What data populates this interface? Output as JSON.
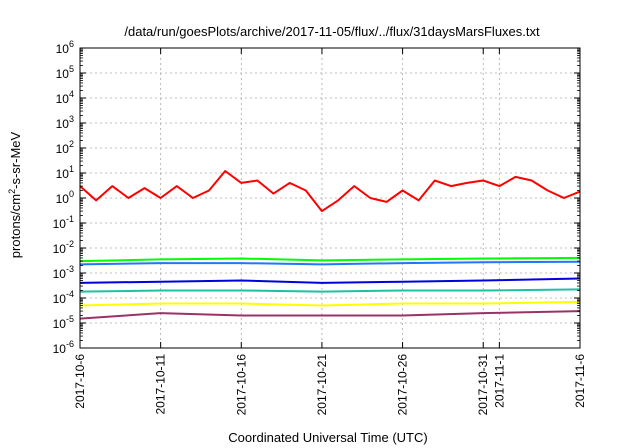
{
  "chart_data": {
    "type": "line",
    "title": "/data/run/goesPlots/archive/2017-11-05/flux/../flux/31daysMarsFluxes.txt",
    "xlabel": "Coordinated Universal Time (UTC)",
    "ylabel": {
      "base": "protons/cm",
      "sup": "2",
      "rest": "-s-sr-MeV"
    },
    "yscale": "log",
    "ylim_exp": [
      -6,
      6
    ],
    "xlim": [
      "2017-10-06",
      "2017-11-06"
    ],
    "grid": true,
    "x_ticks": [
      {
        "date": "2017-10-06",
        "label": "2017-10-6"
      },
      {
        "date": "2017-10-11",
        "label": "2017-10-11"
      },
      {
        "date": "2017-10-16",
        "label": "2017-10-16"
      },
      {
        "date": "2017-10-21",
        "label": "2017-10-21"
      },
      {
        "date": "2017-10-26",
        "label": "2017-10-26"
      },
      {
        "date": "2017-10-31",
        "label": "2017-10-31"
      },
      {
        "date": "2017-11-01",
        "label": "2017-11-1"
      },
      {
        "date": "2017-11-06",
        "label": "2017-11-6"
      }
    ],
    "series": [
      {
        "color": "#ff0000",
        "x": [
          "2017-10-06",
          "2017-10-07",
          "2017-10-08",
          "2017-10-09",
          "2017-10-10",
          "2017-10-11",
          "2017-10-12",
          "2017-10-13",
          "2017-10-14",
          "2017-10-15",
          "2017-10-16",
          "2017-10-17",
          "2017-10-18",
          "2017-10-19",
          "2017-10-20",
          "2017-10-21",
          "2017-10-22",
          "2017-10-23",
          "2017-10-24",
          "2017-10-25",
          "2017-10-26",
          "2017-10-27",
          "2017-10-28",
          "2017-10-29",
          "2017-10-30",
          "2017-10-31",
          "2017-11-01",
          "2017-11-02",
          "2017-11-03",
          "2017-11-04",
          "2017-11-05",
          "2017-11-06"
        ],
        "y": [
          3,
          0.8,
          3,
          1,
          2.5,
          1,
          3,
          1,
          2,
          12,
          4,
          5,
          1.5,
          4,
          2,
          0.3,
          0.8,
          3,
          1,
          0.7,
          2,
          0.8,
          5,
          3,
          4,
          5,
          3,
          7,
          5,
          2,
          1,
          1.8
        ]
      },
      {
        "color": "#00ff00",
        "x": [
          "2017-10-06",
          "2017-10-11",
          "2017-10-16",
          "2017-10-21",
          "2017-10-26",
          "2017-10-31",
          "2017-11-06"
        ],
        "y": [
          0.003,
          0.0035,
          0.0038,
          0.0032,
          0.0035,
          0.0038,
          0.004
        ]
      },
      {
        "color": "#1f77ff",
        "x": [
          "2017-10-06",
          "2017-10-11",
          "2017-10-16",
          "2017-10-21",
          "2017-10-26",
          "2017-10-31",
          "2017-11-06"
        ],
        "y": [
          0.0022,
          0.0025,
          0.0025,
          0.0022,
          0.0025,
          0.0027,
          0.0028
        ]
      },
      {
        "color": "#0000dd",
        "x": [
          "2017-10-06",
          "2017-10-11",
          "2017-10-16",
          "2017-10-21",
          "2017-10-26",
          "2017-10-31",
          "2017-11-06"
        ],
        "y": [
          0.0004,
          0.00045,
          0.0005,
          0.0004,
          0.00045,
          0.0005,
          0.0006
        ]
      },
      {
        "color": "#20c0a0",
        "x": [
          "2017-10-06",
          "2017-10-11",
          "2017-10-16",
          "2017-10-21",
          "2017-10-26",
          "2017-10-31",
          "2017-11-06"
        ],
        "y": [
          0.00018,
          0.0002,
          0.0002,
          0.00018,
          0.0002,
          0.0002,
          0.00022
        ]
      },
      {
        "color": "#ffff00",
        "x": [
          "2017-10-06",
          "2017-10-11",
          "2017-10-16",
          "2017-10-21",
          "2017-10-26",
          "2017-10-31",
          "2017-11-06"
        ],
        "y": [
          5e-05,
          6e-05,
          6e-05,
          5e-05,
          6e-05,
          6e-05,
          7e-05
        ]
      },
      {
        "color": "#993366",
        "x": [
          "2017-10-06",
          "2017-10-11",
          "2017-10-16",
          "2017-10-21",
          "2017-10-26",
          "2017-10-31",
          "2017-11-06"
        ],
        "y": [
          1.5e-05,
          2.5e-05,
          2e-05,
          2e-05,
          2e-05,
          2.5e-05,
          3e-05
        ]
      }
    ]
  }
}
